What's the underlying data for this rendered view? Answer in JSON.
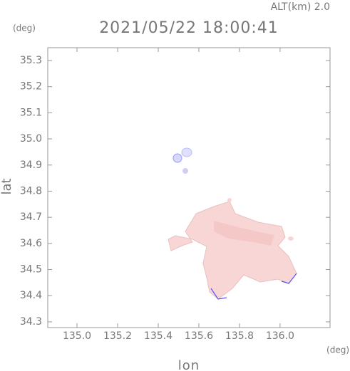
{
  "chart_data": {
    "type": "field",
    "title": "2021/05/22 18:00:41",
    "subtitle": "ALT(km) 2.0",
    "y_unit": "(deg)",
    "x_unit": "(deg)",
    "xlabel": "lon",
    "ylabel": "lat",
    "xlim": [
      134.856,
      136.246
    ],
    "ylim": [
      34.278,
      35.349
    ],
    "xticks": [
      {
        "value": 135,
        "label": "135.0"
      },
      {
        "value": 135.2,
        "label": "135.2"
      },
      {
        "value": 135.4,
        "label": "135.4"
      },
      {
        "value": 135.6,
        "label": "135.6"
      },
      {
        "value": 135.8,
        "label": "135.8"
      },
      {
        "value": 136,
        "label": "136.0"
      }
    ],
    "yticks": [
      {
        "value": 34.3,
        "label": "34.3"
      },
      {
        "value": 34.4,
        "label": "34.4"
      },
      34.5,
      34.6,
      34.7,
      34.8,
      34.9,
      {
        "value": 35,
        "label": "35.0"
      },
      35.1,
      35.2,
      35.3
    ]
  }
}
